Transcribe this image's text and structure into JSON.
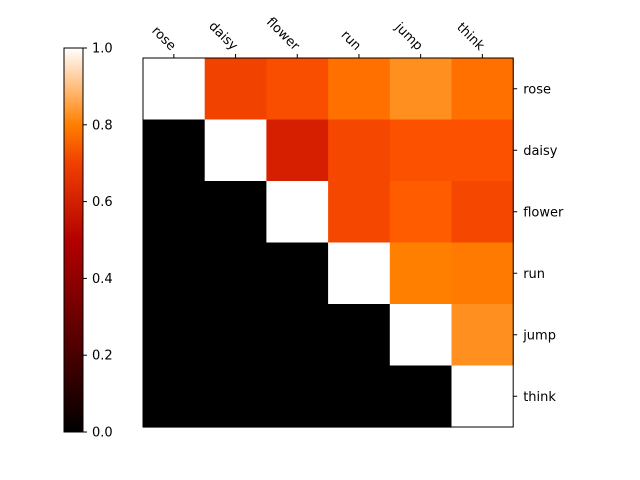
{
  "chart_data": {
    "type": "heatmap",
    "colormap": "gist_heat",
    "x_categories": [
      "rose",
      "daisy",
      "flower",
      "run",
      "jump",
      "think"
    ],
    "y_categories": [
      "rose",
      "daisy",
      "flower",
      "run",
      "jump",
      "think"
    ],
    "values": [
      [
        1.0,
        0.63,
        0.65,
        0.72,
        0.78,
        0.72
      ],
      [
        0.0,
        1.0,
        0.56,
        0.64,
        0.66,
        0.66
      ],
      [
        0.0,
        0.0,
        1.0,
        0.64,
        0.68,
        0.64
      ],
      [
        0.0,
        0.0,
        0.0,
        1.0,
        0.75,
        0.74
      ],
      [
        0.0,
        0.0,
        0.0,
        0.0,
        1.0,
        0.78
      ],
      [
        0.0,
        0.0,
        0.0,
        0.0,
        0.0,
        1.0
      ]
    ],
    "colorbar": {
      "range": [
        0.0,
        1.0
      ],
      "ticks": [
        "0.0",
        "0.2",
        "0.4",
        "0.6",
        "0.8",
        "1.0"
      ]
    },
    "x_tick_position": "top",
    "y_tick_position": "right",
    "x_tick_rotation": "-45",
    "title": "",
    "xlabel": "",
    "ylabel": ""
  }
}
